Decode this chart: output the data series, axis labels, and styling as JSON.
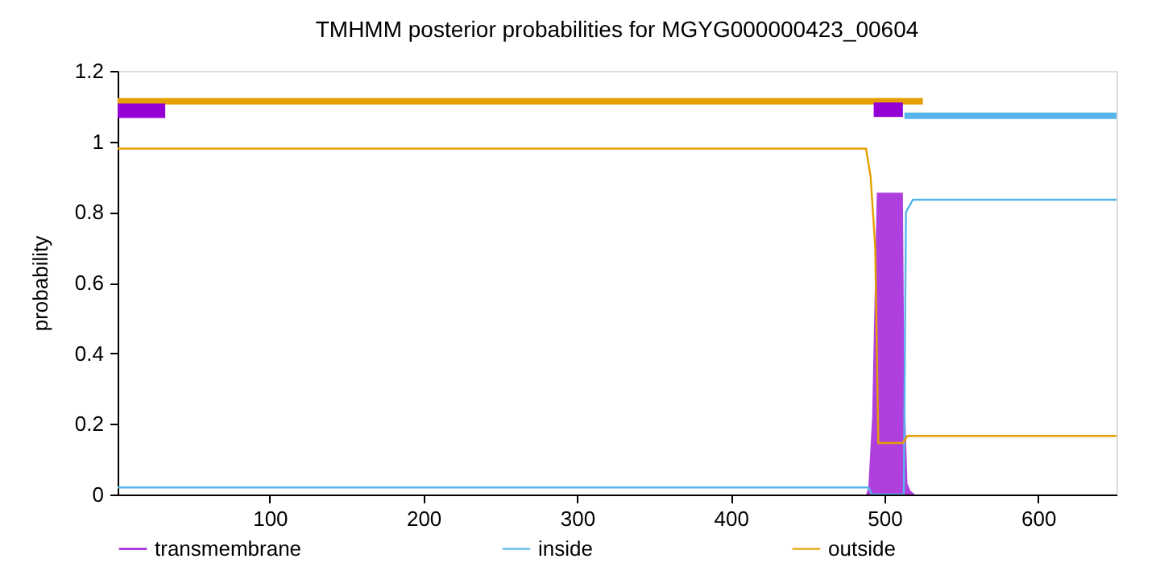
{
  "chart_data": {
    "type": "line",
    "title": "TMHMM posterior probabilities for MGYG000000423_00604",
    "ylabel": "probability",
    "xlim": [
      1,
      651
    ],
    "ylim": [
      0,
      1.2
    ],
    "xticks": [
      100,
      200,
      300,
      400,
      500,
      600
    ],
    "yticks": [
      0,
      0.2,
      0.4,
      0.6,
      0.8,
      1,
      1.2
    ],
    "grid": false,
    "legend": "bottom",
    "series": [
      {
        "name": "transmembrane",
        "type": "area",
        "color": "#9400d3",
        "x": [
          1,
          488,
          489.5,
          492,
          495,
          512,
          513,
          515,
          517,
          520,
          651
        ],
        "values": [
          0,
          0,
          0.02,
          0.22,
          0.855,
          0.855,
          0.3,
          0.03,
          0.01,
          0,
          0
        ]
      },
      {
        "name": "inside",
        "color": "#56b4e9",
        "x": [
          1,
          489.5,
          492,
          512.6,
          514,
          518.5,
          651
        ],
        "values": [
          0.02,
          0.02,
          0,
          0,
          0.8,
          0.835,
          0.835
        ]
      },
      {
        "name": "outside",
        "color": "#e69f00",
        "x": [
          1,
          488,
          491,
          494,
          496,
          512,
          515,
          651
        ],
        "values": [
          0.98,
          0.98,
          0.9,
          0.7,
          0.146,
          0.146,
          0.166,
          0.166
        ]
      },
      {
        "color": "#e69f00",
        "x": [
          1,
          525
        ],
        "values": [
          1.114,
          1.114
        ]
      },
      {
        "color": "#9400d3",
        "x": [
          1,
          32
        ],
        "values": [
          1.087,
          1.087
        ]
      },
      {
        "color": "#9400d3",
        "x": [
          493,
          512
        ],
        "values": [
          1.09,
          1.09
        ]
      },
      {
        "color": "#56b4e9",
        "x": [
          513,
          651
        ],
        "values": [
          1.073,
          1.073
        ]
      }
    ]
  }
}
